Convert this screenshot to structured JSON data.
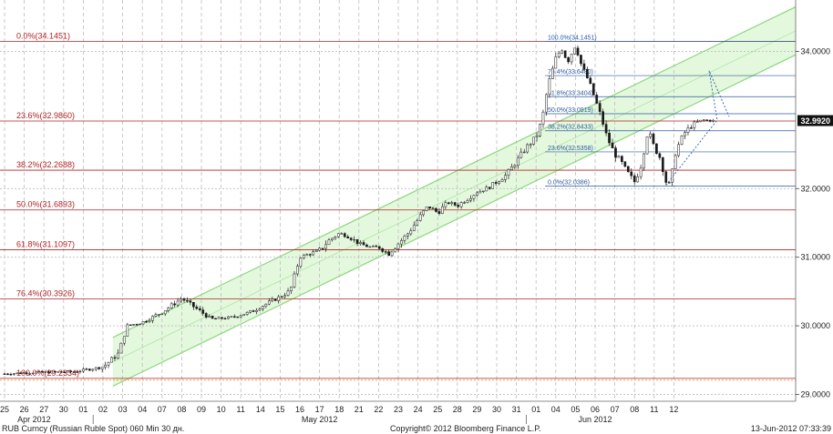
{
  "chart_data": {
    "type": "candlestick",
    "ylim": [
      28.9,
      34.75
    ],
    "yticks": [
      {
        "value": 29.0,
        "label": "29.0000"
      },
      {
        "value": 30.0,
        "label": "30.0000"
      },
      {
        "value": 31.0,
        "label": "31.0000"
      },
      {
        "value": 32.0,
        "label": "32.0000"
      },
      {
        "value": 34.0,
        "label": "34.0000"
      }
    ],
    "last_price": {
      "value": 32.992,
      "label": "32.9920"
    },
    "xticks": [
      "25",
      "26",
      "27",
      "30",
      "01",
      "02",
      "03",
      "04",
      "07",
      "08",
      "09",
      "10",
      "11",
      "14",
      "15",
      "16",
      "17",
      "18",
      "21",
      "22",
      "23",
      "24",
      "25",
      "28",
      "29",
      "30",
      "31",
      "01",
      "04",
      "05",
      "06",
      "07",
      "08",
      "11",
      "12"
    ],
    "month_labels": [
      {
        "label": "Apr 2012",
        "after_tick": 1.5
      },
      {
        "label": "May 2012",
        "after_tick": 16
      },
      {
        "label": "Jun 2012",
        "after_tick": 30
      }
    ],
    "major_fib": [
      {
        "label": "0.0%(34.1451)",
        "value": 34.1451
      },
      {
        "label": "23.6%(32.9860)",
        "value": 32.986
      },
      {
        "label": "38.2%(32.2688)",
        "value": 32.2688
      },
      {
        "label": "50.0%(31.6893)",
        "value": 31.6893
      },
      {
        "label": "61.8%(31.1097)",
        "value": 31.1097
      },
      {
        "label": "76.4%(30.3926)",
        "value": 30.3926
      },
      {
        "label": "100.0%(29.2334)",
        "value": 29.2334
      }
    ],
    "minor_fib": [
      {
        "label": "100.0%(34.1451)",
        "value": 34.1451
      },
      {
        "label": "76.4%(33.6480)",
        "value": 33.648
      },
      {
        "label": "61.8%(33.3404)",
        "value": 33.3404
      },
      {
        "label": "50.0%(33.0919)",
        "value": 33.0919
      },
      {
        "label": "38.2%(32.8433)",
        "value": 32.8433
      },
      {
        "label": "23.6%(32.5358)",
        "value": 32.5358
      },
      {
        "label": "0.0%(32.0386)",
        "value": 32.0386
      }
    ],
    "price_path": [
      [
        0,
        29.3
      ],
      [
        1.5,
        29.32
      ],
      [
        3.5,
        29.33
      ],
      [
        5,
        29.4
      ],
      [
        5.8,
        29.6
      ],
      [
        6.2,
        30.0
      ],
      [
        7,
        30.05
      ],
      [
        8,
        30.2
      ],
      [
        9,
        30.4
      ],
      [
        9.5,
        30.3
      ],
      [
        10.5,
        30.1
      ],
      [
        11.5,
        30.12
      ],
      [
        12.5,
        30.2
      ],
      [
        13.5,
        30.35
      ],
      [
        14.5,
        30.5
      ],
      [
        15,
        31.0
      ],
      [
        15.5,
        31.05
      ],
      [
        16,
        31.1
      ],
      [
        16.5,
        31.25
      ],
      [
        17,
        31.35
      ],
      [
        17.5,
        31.3
      ],
      [
        18,
        31.2
      ],
      [
        18.5,
        31.15
      ],
      [
        19,
        31.15
      ],
      [
        19.5,
        31.05
      ],
      [
        20,
        31.2
      ],
      [
        20.5,
        31.35
      ],
      [
        21,
        31.55
      ],
      [
        21.5,
        31.75
      ],
      [
        22,
        31.65
      ],
      [
        22.5,
        31.8
      ],
      [
        23,
        31.75
      ],
      [
        23.5,
        31.85
      ],
      [
        24,
        31.95
      ],
      [
        24.5,
        32.0
      ],
      [
        25,
        32.1
      ],
      [
        25.5,
        32.2
      ],
      [
        26,
        32.4
      ],
      [
        26.5,
        32.6
      ],
      [
        27,
        32.75
      ],
      [
        27.3,
        33.0
      ],
      [
        27.6,
        33.5
      ],
      [
        28,
        33.9
      ],
      [
        28.3,
        34.05
      ],
      [
        28.6,
        33.85
      ],
      [
        29,
        34.1
      ],
      [
        29.3,
        33.8
      ],
      [
        29.7,
        33.55
      ],
      [
        30,
        33.3
      ],
      [
        30.3,
        33.05
      ],
      [
        30.6,
        32.75
      ],
      [
        31,
        32.5
      ],
      [
        31.3,
        32.4
      ],
      [
        31.6,
        32.25
      ],
      [
        32,
        32.1
      ],
      [
        32.3,
        32.3
      ],
      [
        32.7,
        32.85
      ],
      [
        33,
        32.6
      ],
      [
        33.3,
        32.45
      ],
      [
        33.6,
        32.1
      ],
      [
        33.8,
        32.05
      ],
      [
        34.1,
        32.55
      ],
      [
        34.5,
        32.8
      ],
      [
        35,
        32.95
      ],
      [
        35.5,
        33.0
      ],
      [
        36,
        32.99
      ]
    ],
    "footer": {
      "left": "RUB Curncy (Russian Ruble Spot) 060 Min 30 дн.",
      "center": "Copyright© 2012 Bloomberg Finance L.P.",
      "right": "13-Jun-2012 07:33:39"
    },
    "colors": {
      "candle": "#1a1a1a",
      "fib_major": "#b22222",
      "fib_minor": "#2a5aa0",
      "channel_fill": "#d9f5d0",
      "channel_line": "#8ad87a",
      "grid": "#bdbdbd",
      "last_price_bg": "#111111"
    }
  }
}
